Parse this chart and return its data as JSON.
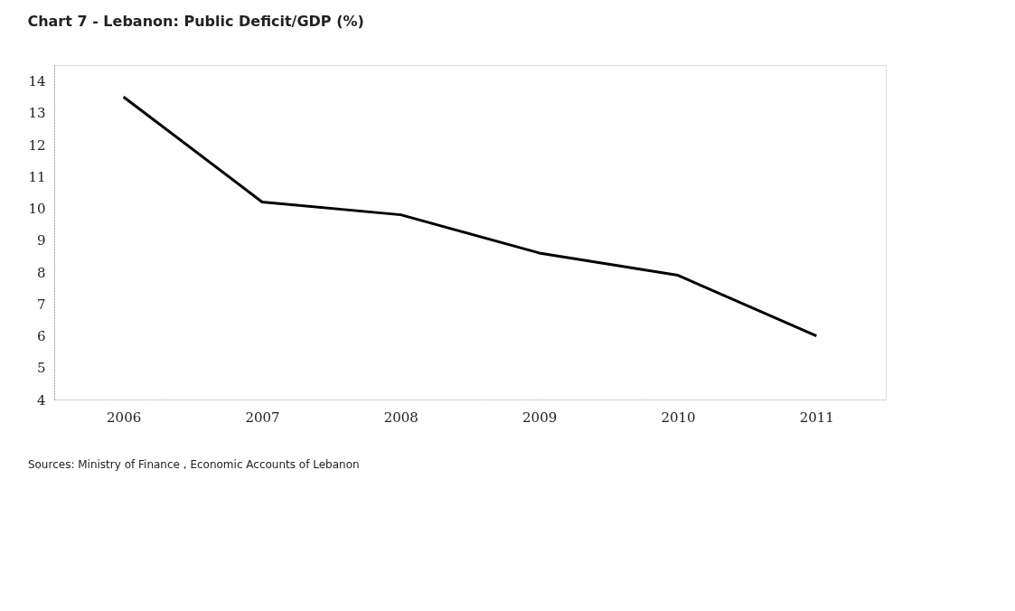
{
  "chart_data": {
    "type": "line",
    "title": "Chart 7 - Lebanon: Public Deficit/GDP (%)",
    "categories": [
      "2006",
      "2007",
      "2008",
      "2009",
      "2010",
      "2011"
    ],
    "series": [
      {
        "color": "#000000",
        "values": [
          13.5,
          10.2,
          9.8,
          8.6,
          7.9,
          6.0
        ]
      }
    ],
    "ylim": [
      4,
      14.5
    ],
    "yticks": [
      4,
      5,
      6,
      7,
      8,
      9,
      10,
      11,
      12,
      13,
      14
    ],
    "grid": false,
    "legend": false,
    "marker": "none",
    "line_style": "solid",
    "annotations": [
      "Sources: Ministry of Finance , Economic Accounts of Lebanon"
    ]
  }
}
